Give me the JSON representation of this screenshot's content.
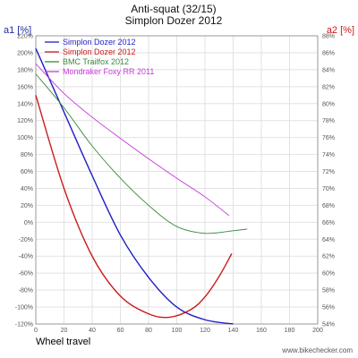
{
  "chart_data": {
    "type": "line",
    "title": [
      "Anti-squat (32/15)",
      "Simplon Dozer 2012"
    ],
    "xlabel": "Wheel travel",
    "y1label": "a1 [%]",
    "y2label": "a2 [%]",
    "xlim": [
      0,
      200
    ],
    "y1lim": [
      -120,
      220
    ],
    "y2lim": [
      54,
      88
    ],
    "xticks": [
      "0",
      "20",
      "40",
      "60",
      "80",
      "100",
      "120",
      "140",
      "160",
      "180",
      "200"
    ],
    "y1ticks": [
      "220%",
      "200%",
      "180%",
      "160%",
      "140%",
      "120%",
      "100%",
      "80%",
      "60%",
      "40%",
      "20%",
      "0%",
      "-20%",
      "-40%",
      "-60%",
      "-80%",
      "-100%",
      "-120%"
    ],
    "y2ticks": [
      "88%",
      "86%",
      "84%",
      "82%",
      "80%",
      "78%",
      "76%",
      "74%",
      "72%",
      "70%",
      "68%",
      "66%",
      "64%",
      "62%",
      "60%",
      "58%",
      "56%",
      "54%"
    ],
    "legend_position": "top-left",
    "grid": true,
    "watermark": "www.bikechecker.com",
    "colors": {
      "y1_axis": "#1f2aa8",
      "y2_axis": "#cc1a1a",
      "grid": "#e2e2e2",
      "frame": "#999999"
    },
    "series": [
      {
        "name": "Simplon Dozer 2012",
        "axis": "a1",
        "color": "#1e1ec8",
        "x": [
          0,
          20,
          40,
          60,
          80,
          100,
          120,
          140
        ],
        "y": [
          205,
          130,
          55,
          -15,
          -65,
          -100,
          -115,
          -120
        ]
      },
      {
        "name": "Simplon Dozer 2012",
        "axis": "a1",
        "color": "#cc1a1a",
        "x": [
          0,
          20,
          40,
          60,
          80,
          95,
          110,
          120,
          130,
          139
        ],
        "y": [
          150,
          40,
          -40,
          -87,
          -108,
          -112,
          -103,
          -88,
          -64,
          -37
        ]
      },
      {
        "name": "BMC Trailfox 2012",
        "axis": "a1",
        "color": "#3a8a3a",
        "x": [
          0,
          20,
          40,
          60,
          80,
          100,
          120,
          140,
          150
        ],
        "y": [
          175,
          135,
          90,
          52,
          20,
          -5,
          -13,
          -10,
          -8
        ]
      },
      {
        "name": "Mondraker Foxy RR 2011",
        "axis": "a1",
        "color": "#c23ad6",
        "x": [
          0,
          20,
          40,
          60,
          80,
          100,
          120,
          137
        ],
        "y": [
          187,
          152,
          124,
          99,
          75,
          52,
          30,
          8
        ]
      }
    ]
  }
}
